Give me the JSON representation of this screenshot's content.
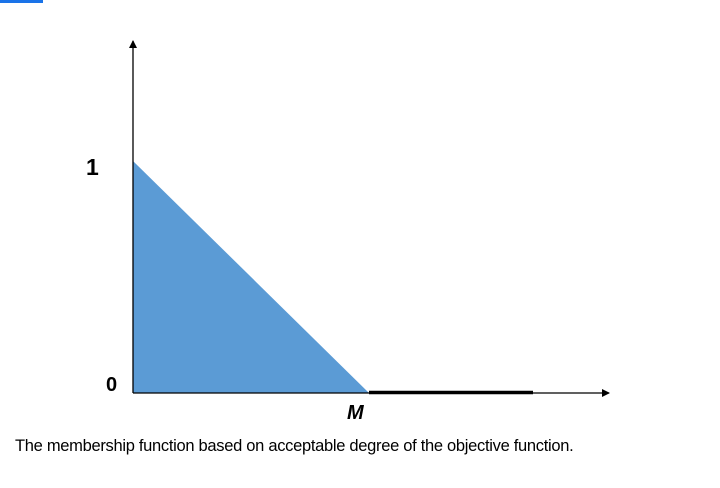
{
  "colors": {
    "fill": "#5b9bd5",
    "accent_bar": "#1a73e8",
    "axis": "#000000"
  },
  "diagram": {
    "y_label_top": "1",
    "y_label_bottom": "0",
    "x_label": "M",
    "caption": "The membership function based on acceptable degree of the objective function."
  }
}
